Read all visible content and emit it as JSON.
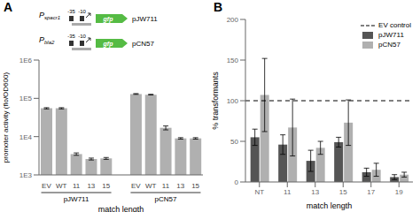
{
  "chart_data": [
    {
      "type": "bar",
      "title": "A",
      "log": "y",
      "categories": [
        "EV",
        "WT",
        "11",
        "13",
        "15"
      ],
      "series": [
        {
          "name": "pJW711",
          "values": [
            55000,
            55000,
            3500,
            2600,
            2700
          ],
          "errors": [
            2000,
            2000,
            250,
            150,
            150
          ]
        },
        {
          "name": "pCN57",
          "values": [
            130000,
            125000,
            17000,
            9000,
            9000
          ],
          "errors": [
            3000,
            2500,
            2000,
            400,
            400
          ]
        }
      ],
      "color": "#b0b0b0",
      "ylabel": "promoter activity (flo/OD600)",
      "xlabel": "match length",
      "ylim": [
        1000,
        1000000
      ],
      "yticks": [
        {
          "value": 1000,
          "label": "1E3"
        },
        {
          "value": 10000,
          "label": "1E4"
        },
        {
          "value": 100000,
          "label": "1E5"
        },
        {
          "value": 1000000,
          "label": "1E6"
        }
      ],
      "diagram": {
        "rows": [
          {
            "promoter": "Pspacr1",
            "gene": "gfp",
            "plasmid": "pJW711"
          },
          {
            "promoter": "Pbla2",
            "gene": "gfp",
            "plasmid": "pCN57"
          }
        ],
        "box_labels": [
          "-35",
          "-10"
        ]
      }
    },
    {
      "type": "bar",
      "title": "B",
      "categories": [
        "NT",
        "11",
        "13",
        "15",
        "17",
        "19"
      ],
      "series": [
        {
          "name": "pJW711",
          "color": "#555555",
          "values": [
            55,
            46,
            26,
            49,
            12,
            6
          ],
          "errors": [
            10,
            12,
            13,
            6,
            5,
            3
          ]
        },
        {
          "name": "pCN57",
          "color": "#b0b0b0",
          "values": [
            107,
            67,
            42,
            73,
            15,
            9
          ],
          "errors": [
            45,
            35,
            8,
            28,
            8,
            3
          ]
        }
      ],
      "lines": [
        {
          "name": "EV control",
          "value": 100,
          "line_style": "dashed"
        }
      ],
      "ylabel": "% transformants",
      "xlabel": "match length",
      "ylim": [
        0,
        200
      ],
      "yticks": [
        0,
        50,
        100,
        150,
        200
      ],
      "legend": "upper right"
    }
  ]
}
